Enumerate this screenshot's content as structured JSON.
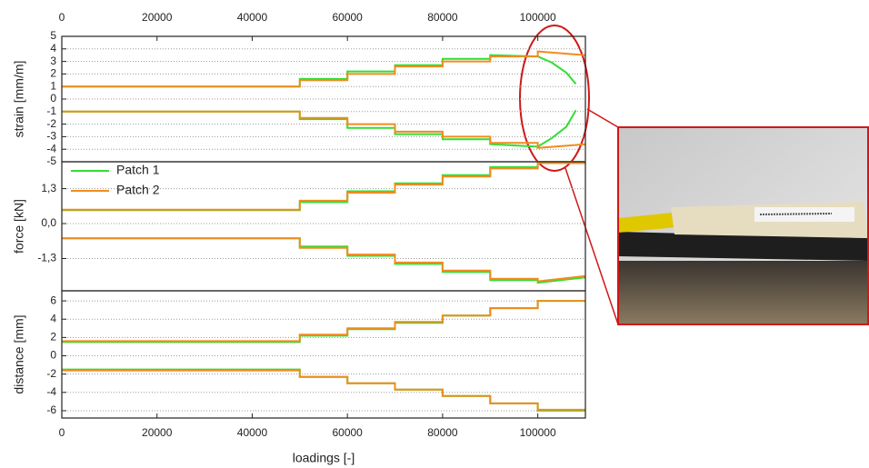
{
  "chart_data": [
    {
      "type": "line",
      "ylabel": "strain [mm/m]",
      "xlim": [
        0,
        110000
      ],
      "xticks": [
        0,
        20000,
        40000,
        60000,
        80000,
        100000
      ],
      "ylim": [
        -5,
        5
      ],
      "yticks": [
        -5,
        -4,
        -3,
        -2,
        -1,
        0,
        1,
        2,
        3,
        4,
        5
      ],
      "grid": true,
      "series": [
        {
          "color": "#33dd33",
          "x": [
            0,
            50000,
            50000,
            60000,
            60000,
            70000,
            70000,
            80000,
            80000,
            90000,
            90000,
            100000,
            103000,
            106000,
            108000
          ],
          "values": [
            1,
            1,
            1.6,
            1.6,
            2.2,
            2.2,
            2.7,
            2.7,
            3.2,
            3.2,
            3.5,
            3.4,
            2.9,
            2.1,
            1.2
          ]
        },
        {
          "color": "#33dd33",
          "x": [
            0,
            50000,
            50000,
            60000,
            60000,
            70000,
            70000,
            80000,
            80000,
            90000,
            90000,
            100000,
            103000,
            106000,
            108000
          ],
          "values": [
            -1,
            -1,
            -1.6,
            -1.6,
            -2.3,
            -2.3,
            -2.8,
            -2.8,
            -3.2,
            -3.2,
            -3.6,
            -3.8,
            -3.1,
            -2.2,
            -0.9
          ]
        },
        {
          "color": "#f08c1e",
          "x": [
            0,
            50000,
            50000,
            60000,
            60000,
            70000,
            70000,
            80000,
            80000,
            90000,
            90000,
            100000,
            100000,
            110000
          ],
          "values": [
            1,
            1,
            1.5,
            1.5,
            2,
            2,
            2.6,
            2.6,
            3,
            3,
            3.4,
            3.4,
            3.8,
            3.5
          ]
        },
        {
          "color": "#f08c1e",
          "x": [
            0,
            50000,
            50000,
            60000,
            60000,
            70000,
            70000,
            80000,
            80000,
            90000,
            90000,
            100000,
            100000,
            110000
          ],
          "values": [
            -1,
            -1,
            -1.5,
            -1.5,
            -2,
            -2,
            -2.6,
            -2.6,
            -3,
            -3,
            -3.5,
            -3.5,
            -3.9,
            -3.6
          ]
        }
      ]
    },
    {
      "type": "line",
      "ylabel": "force [kN]",
      "xlim": [
        0,
        110000
      ],
      "ylim": [
        -2.5,
        2.3
      ],
      "yticks": [
        {
          "value": 1.3,
          "label": "1,3"
        },
        {
          "value": 0,
          "label": "0,0"
        },
        {
          "value": -1.3,
          "label": "-1,3"
        }
      ],
      "grid": true,
      "legend": "upper left",
      "series": [
        {
          "name": "Patch 1",
          "color": "#33dd33",
          "x": [
            0,
            50000,
            50000,
            60000,
            60000,
            70000,
            70000,
            80000,
            80000,
            90000,
            90000,
            100000,
            100000,
            110000
          ],
          "values": [
            0.5,
            0.5,
            0.8,
            0.8,
            1.2,
            1.2,
            1.5,
            1.5,
            1.8,
            1.8,
            2.1,
            2.1,
            2.3,
            2.3
          ]
        },
        {
          "color": "#33dd33",
          "x": [
            0,
            50000,
            50000,
            60000,
            60000,
            70000,
            70000,
            80000,
            80000,
            90000,
            90000,
            100000,
            100000,
            110000
          ],
          "values": [
            -0.55,
            -0.55,
            -0.85,
            -0.85,
            -1.2,
            -1.2,
            -1.5,
            -1.5,
            -1.8,
            -1.8,
            -2.1,
            -2.1,
            -2.2,
            -2.0
          ]
        },
        {
          "name": "Patch 2",
          "color": "#f08c1e",
          "x": [
            0,
            50000,
            50000,
            60000,
            60000,
            70000,
            70000,
            80000,
            80000,
            90000,
            90000,
            100000,
            100000,
            110000
          ],
          "values": [
            0.52,
            0.52,
            0.85,
            0.85,
            1.15,
            1.15,
            1.45,
            1.45,
            1.75,
            1.75,
            2.05,
            2.05,
            2.25,
            2.25
          ]
        },
        {
          "color": "#f08c1e",
          "x": [
            0,
            50000,
            50000,
            60000,
            60000,
            70000,
            70000,
            80000,
            80000,
            90000,
            90000,
            100000,
            100000,
            110000
          ],
          "values": [
            -0.55,
            -0.55,
            -0.9,
            -0.9,
            -1.15,
            -1.15,
            -1.45,
            -1.45,
            -1.75,
            -1.75,
            -2.05,
            -2.05,
            -2.15,
            -1.95
          ]
        }
      ]
    },
    {
      "type": "line",
      "ylabel": "distance [mm]",
      "xlabel": "loadings [-]",
      "xlim": [
        0,
        110000
      ],
      "xticks": [
        0,
        20000,
        40000,
        60000,
        80000,
        100000
      ],
      "ylim": [
        -6.8,
        7.1
      ],
      "yticks": [
        -6,
        -4,
        -2,
        0,
        2,
        4,
        6
      ],
      "grid": true,
      "series": [
        {
          "color": "#33dd33",
          "x": [
            0,
            50000,
            50000,
            60000,
            60000,
            70000,
            70000,
            80000,
            80000,
            90000,
            90000,
            100000,
            100000,
            110000
          ],
          "values": [
            1.5,
            1.5,
            2.2,
            2.2,
            2.9,
            2.9,
            3.6,
            3.6,
            4.4,
            4.4,
            5.2,
            5.2,
            6.0,
            6.0
          ]
        },
        {
          "color": "#33dd33",
          "x": [
            0,
            50000,
            50000,
            60000,
            60000,
            70000,
            70000,
            80000,
            80000,
            90000,
            90000,
            100000,
            100000,
            110000
          ],
          "values": [
            -1.5,
            -1.5,
            -2.3,
            -2.3,
            -3.0,
            -3.0,
            -3.7,
            -3.7,
            -4.4,
            -4.4,
            -5.2,
            -5.2,
            -6.0,
            -6.0
          ]
        },
        {
          "color": "#f08c1e",
          "x": [
            0,
            50000,
            50000,
            60000,
            60000,
            70000,
            70000,
            80000,
            80000,
            90000,
            90000,
            100000,
            100000,
            110000
          ],
          "values": [
            1.6,
            1.6,
            2.3,
            2.3,
            3.0,
            3.0,
            3.7,
            3.7,
            4.4,
            4.4,
            5.2,
            5.2,
            6.0,
            6.0
          ]
        },
        {
          "color": "#f08c1e",
          "x": [
            0,
            50000,
            50000,
            60000,
            60000,
            70000,
            70000,
            80000,
            80000,
            90000,
            90000,
            100000,
            100000,
            110000
          ],
          "values": [
            -1.6,
            -1.6,
            -2.3,
            -2.3,
            -3.0,
            -3.0,
            -3.7,
            -3.7,
            -4.4,
            -4.4,
            -5.2,
            -5.2,
            -5.9,
            -5.9
          ]
        }
      ]
    }
  ]
}
